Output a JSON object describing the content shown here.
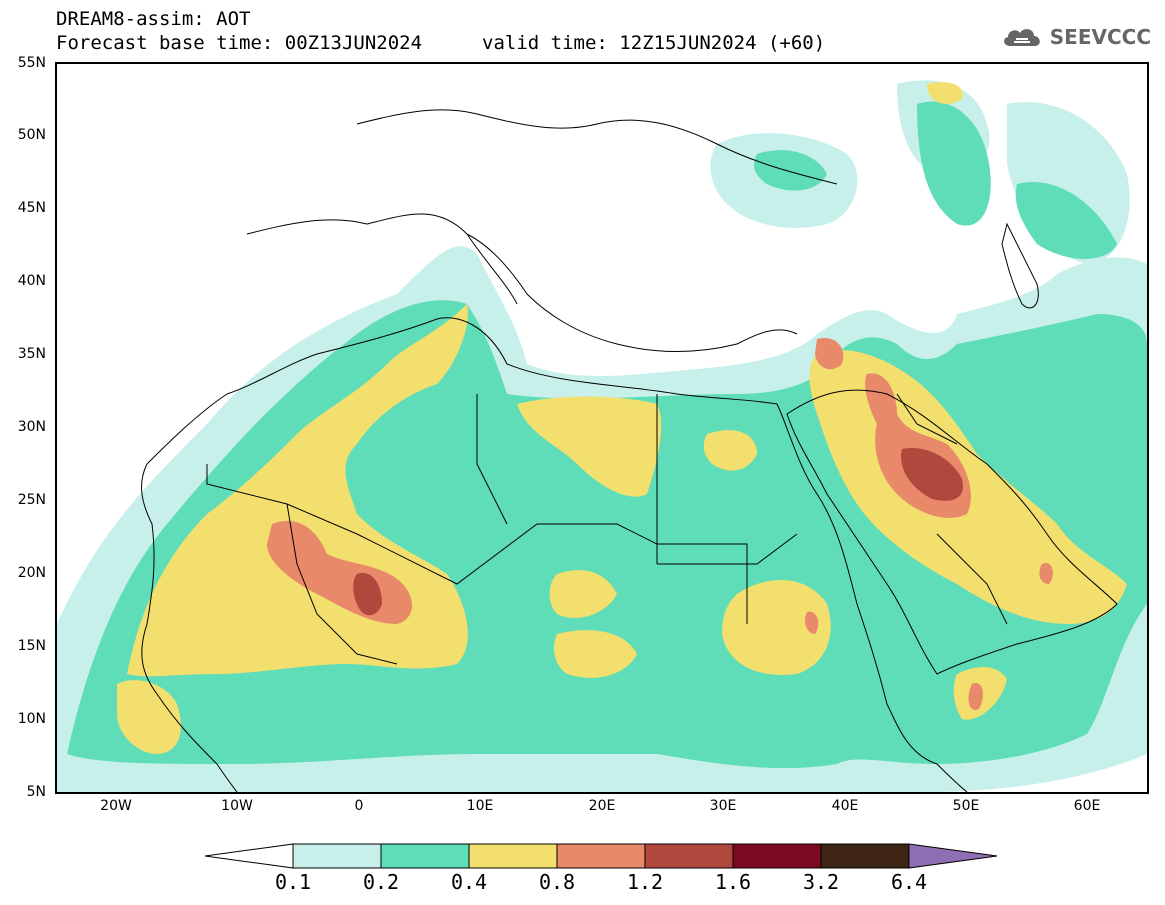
{
  "header": {
    "title": "DREAM8-assim: AOT",
    "base_time": "Forecast base time: 00Z13JUN2024",
    "valid_time": "valid time: 12Z15JUN2024 (+60)"
  },
  "logo": {
    "text": "SEEVCCC",
    "icon": "cloud-icon"
  },
  "map": {
    "lat_labels": [
      "55N",
      "50N",
      "45N",
      "40N",
      "35N",
      "30N",
      "25N",
      "20N",
      "15N",
      "10N",
      "5N"
    ],
    "lon_labels": [
      "20W",
      "10W",
      "0",
      "10E",
      "20E",
      "30E",
      "40E",
      "50E",
      "60E"
    ]
  },
  "colorbar": {
    "labels": [
      "0.1",
      "0.2",
      "0.4",
      "0.8",
      "1.2",
      "1.6",
      "3.2",
      "6.4"
    ],
    "colors": [
      "#c8f0eb",
      "#5fdcb8",
      "#f2df6e",
      "#e8896a",
      "#b0483e",
      "#7d0a22",
      "#3e2414",
      "#8e6fb5"
    ]
  }
}
